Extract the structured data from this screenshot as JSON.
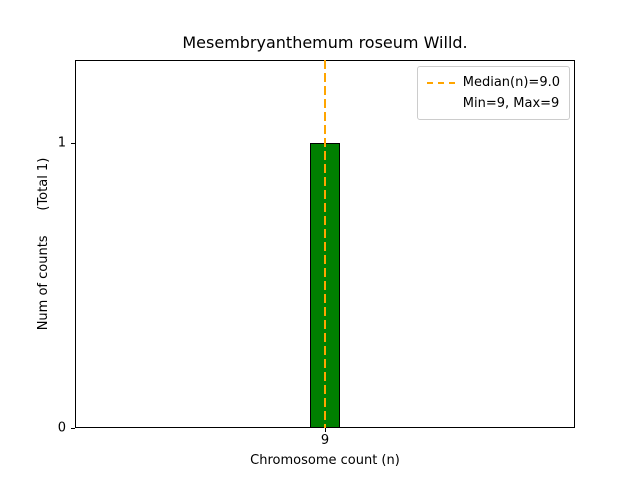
{
  "chart_data": {
    "type": "bar",
    "title": "Mesembryanthemum roseum Willd.",
    "xlabel": "Chromosome count (n)",
    "ylabel": "Num of counts      (Total 1)",
    "categories": [
      9
    ],
    "values": [
      1
    ],
    "bar_width": 0.1,
    "bar_color": "#008000",
    "bar_edge_color": "#000000",
    "xlim": [
      8.1667,
      9.8333
    ],
    "ylim": [
      0,
      1.2912
    ],
    "xticks": [
      {
        "value": 9,
        "label": "9"
      }
    ],
    "yticks": [
      {
        "value": 1,
        "label": "1"
      },
      {
        "value": 0,
        "label": "0"
      }
    ],
    "median": {
      "value": 9.0,
      "color": "#ffa500",
      "style": "dashed"
    },
    "legend": {
      "position": "upper-right",
      "items": [
        {
          "label": "Median(n)=9.0",
          "swatch": "dashed-orange-line"
        },
        {
          "label": "Min=9, Max=9",
          "swatch": "none"
        }
      ]
    },
    "grid": false
  }
}
